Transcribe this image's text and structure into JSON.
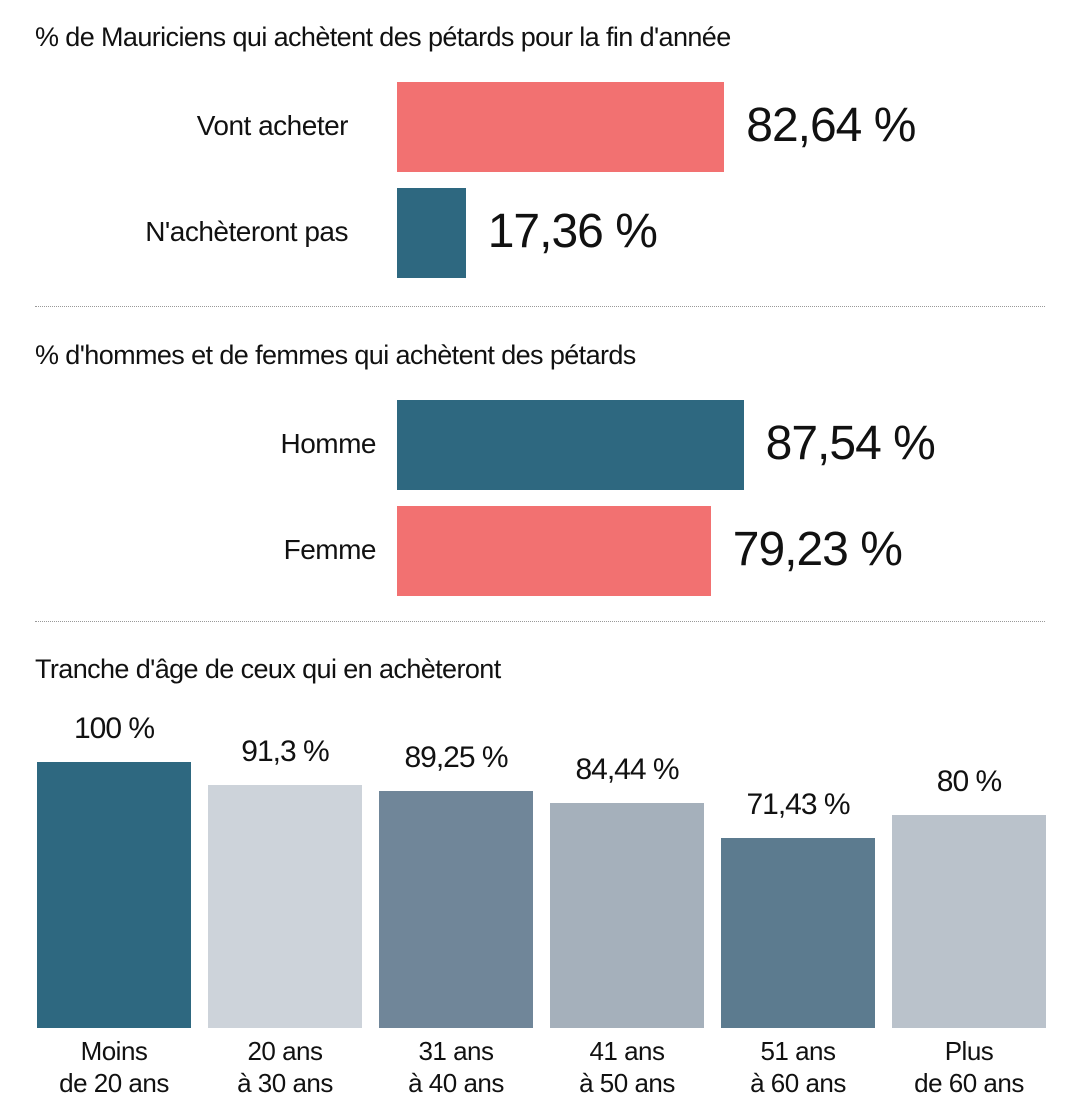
{
  "chart_data": [
    {
      "type": "bar",
      "orientation": "horizontal",
      "title": "% de Mauriciens qui achètent des pétards pour la fin d'année",
      "categories": [
        "Vont acheter",
        "N'achèteront pas"
      ],
      "values": [
        82.64,
        17.36
      ],
      "value_labels": [
        "82,64 %",
        "17,36 %"
      ],
      "colors": [
        "#f27171",
        "#2e6880"
      ],
      "xlim": [
        0,
        100
      ]
    },
    {
      "type": "bar",
      "orientation": "horizontal",
      "title": "% d'hommes et de femmes qui achètent des pétards",
      "categories": [
        "Homme",
        "Femme"
      ],
      "values": [
        87.54,
        79.23
      ],
      "value_labels": [
        "87,54 %",
        "79,23 %"
      ],
      "colors": [
        "#2e6880",
        "#f27171"
      ],
      "xlim": [
        0,
        100
      ]
    },
    {
      "type": "bar",
      "orientation": "vertical",
      "title": "Tranche d'âge de ceux qui en achèteront",
      "categories": [
        [
          "Moins",
          "de 20 ans"
        ],
        [
          "20 ans",
          "à 30 ans"
        ],
        [
          "31 ans",
          "à 40 ans"
        ],
        [
          "41 ans",
          "à 50 ans"
        ],
        [
          "51 ans",
          "à 60 ans"
        ],
        [
          "Plus",
          "de 60 ans"
        ]
      ],
      "values": [
        100,
        91.3,
        89.25,
        84.44,
        71.43,
        80
      ],
      "value_labels": [
        "100 %",
        "91,3 %",
        "89,25 %",
        "84,44 %",
        "71,43 %",
        "80 %"
      ],
      "colors": [
        "#2e6880",
        "#cdd3da",
        "#708699",
        "#a5b0bb",
        "#5c7b8f",
        "#bac2cb"
      ],
      "ylim": [
        0,
        100
      ],
      "grid": false
    }
  ]
}
